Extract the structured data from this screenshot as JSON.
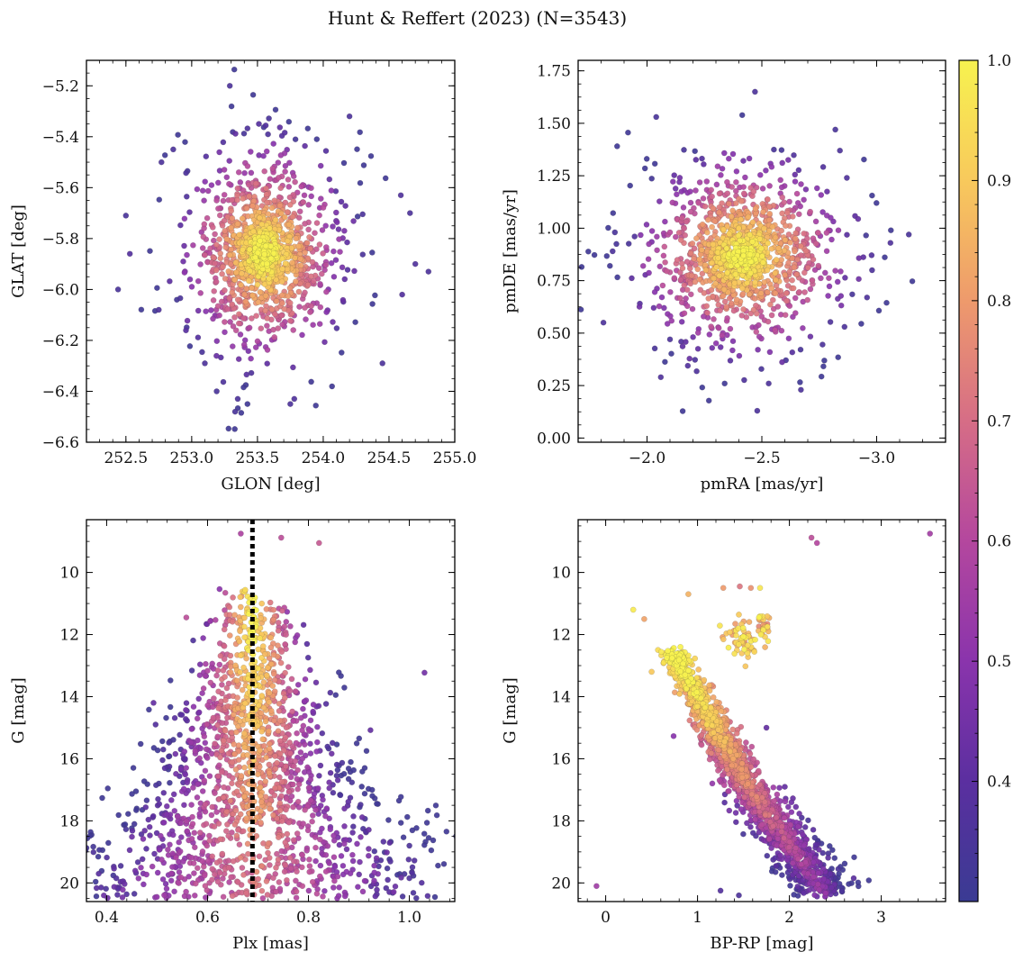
{
  "figure": {
    "title": "Hunt & Reffert (2023) (N=3543)",
    "n_members": 3543
  },
  "colorbar": {
    "colormap": "plasma",
    "range": [
      0.3,
      1.0
    ],
    "ticks": [
      0.4,
      0.5,
      0.6,
      0.7,
      0.8,
      0.9,
      1.0
    ],
    "tick_labels": [
      "0.4",
      "0.5",
      "0.6",
      "0.7",
      "0.8",
      "0.9",
      "1.0"
    ],
    "colors": [
      "#3a3b93",
      "#5b2fa0",
      "#8a34ac",
      "#b4479e",
      "#d66d86",
      "#ee9a6c",
      "#f8c95c",
      "#f7f24f"
    ]
  },
  "chart_data": [
    {
      "id": "glon-glat",
      "type": "scatter",
      "xlabel": "GLON [deg]",
      "ylabel": "GLAT [deg]",
      "xlim": [
        252.2,
        255.0
      ],
      "ylim": [
        -6.6,
        -5.1
      ],
      "y_inverted": false,
      "xticks": [
        252.5,
        253.0,
        253.5,
        254.0,
        254.5,
        255.0
      ],
      "xtick_labels": [
        "252.5",
        "253.0",
        "253.5",
        "254.0",
        "254.5",
        "255.0"
      ],
      "yticks": [
        -5.2,
        -5.4,
        -5.6,
        -5.8,
        -6.0,
        -6.2,
        -6.4,
        -6.6
      ],
      "ytick_labels": [
        "−5.2",
        "−5.4",
        "−5.6",
        "−5.8",
        "−6.0",
        "−6.2",
        "−6.4",
        "−6.6"
      ],
      "cluster_center": [
        253.55,
        -5.86
      ],
      "cluster_spread": [
        0.3,
        0.2
      ],
      "points": [
        {
          "x": 252.44,
          "y": -6.0,
          "p": 0.35
        },
        {
          "x": 252.5,
          "y": -5.71,
          "p": 0.35
        },
        {
          "x": 252.53,
          "y": -5.86,
          "p": 0.38
        },
        {
          "x": 252.77,
          "y": -5.5,
          "p": 0.36
        },
        {
          "x": 252.86,
          "y": -5.45,
          "p": 0.36
        },
        {
          "x": 253.1,
          "y": -6.29,
          "p": 0.36
        },
        {
          "x": 253.19,
          "y": -6.4,
          "p": 0.35
        },
        {
          "x": 253.29,
          "y": -5.2,
          "p": 0.36
        },
        {
          "x": 253.33,
          "y": -6.48,
          "p": 0.35
        },
        {
          "x": 253.35,
          "y": -6.43,
          "p": 0.36
        },
        {
          "x": 253.75,
          "y": -6.45,
          "p": 0.36
        },
        {
          "x": 253.78,
          "y": -6.43,
          "p": 0.37
        },
        {
          "x": 254.2,
          "y": -5.32,
          "p": 0.36
        },
        {
          "x": 254.45,
          "y": -6.29,
          "p": 0.36
        },
        {
          "x": 254.59,
          "y": -5.63,
          "p": 0.37
        },
        {
          "x": 254.66,
          "y": -5.7,
          "p": 0.36
        },
        {
          "x": 254.8,
          "y": -5.93,
          "p": 0.36
        },
        {
          "x": 254.7,
          "y": -5.9,
          "p": 0.37
        },
        {
          "x": 254.6,
          "y": -6.02,
          "p": 0.38
        },
        {
          "x": 252.75,
          "y": -6.08,
          "p": 0.37
        }
      ]
    },
    {
      "id": "pmra-pmde",
      "type": "scatter",
      "xlabel": "pmRA [mas/yr]",
      "ylabel": "pmDE [mas/yr]",
      "xlim": [
        -3.3,
        -1.7
      ],
      "ylim": [
        -0.02,
        1.8
      ],
      "y_inverted": false,
      "x_inverted": true,
      "xticks": [
        -3.0,
        -2.5,
        -2.0
      ],
      "xtick_labels": [
        "−3.0",
        "−2.5",
        "−2.0"
      ],
      "yticks": [
        0.0,
        0.25,
        0.5,
        0.75,
        1.0,
        1.25,
        1.5,
        1.75
      ],
      "ytick_labels": [
        "0.00",
        "0.25",
        "0.50",
        "0.75",
        "1.00",
        "1.25",
        "1.50",
        "1.75"
      ],
      "cluster_center": [
        -2.42,
        0.87
      ],
      "cluster_spread": [
        0.22,
        0.22
      ],
      "points": [
        {
          "x": -3.14,
          "y": 0.97,
          "p": 0.35
        },
        {
          "x": -3.06,
          "y": 0.93,
          "p": 0.37
        },
        {
          "x": -2.98,
          "y": 0.8,
          "p": 0.36
        },
        {
          "x": -2.82,
          "y": 1.47,
          "p": 0.35
        },
        {
          "x": -2.47,
          "y": 1.65,
          "p": 0.36
        },
        {
          "x": -2.48,
          "y": 0.13,
          "p": 0.36
        },
        {
          "x": -2.53,
          "y": 0.26,
          "p": 0.36
        },
        {
          "x": -2.67,
          "y": 0.23,
          "p": 0.36
        },
        {
          "x": -2.04,
          "y": 1.53,
          "p": 0.35
        },
        {
          "x": -1.81,
          "y": 0.55,
          "p": 0.36
        },
        {
          "x": -1.86,
          "y": 0.98,
          "p": 0.35
        },
        {
          "x": -1.85,
          "y": 0.89,
          "p": 0.36
        },
        {
          "x": -2.06,
          "y": 0.29,
          "p": 0.37
        },
        {
          "x": -2.84,
          "y": 1.37,
          "p": 0.36
        },
        {
          "x": -2.87,
          "y": 1.24,
          "p": 0.37
        },
        {
          "x": -2.86,
          "y": 0.53,
          "p": 0.36
        },
        {
          "x": -2.1,
          "y": 0.47,
          "p": 0.36
        }
      ]
    },
    {
      "id": "plx-g",
      "type": "scatter",
      "xlabel": "Plx [mas]",
      "ylabel": "G [mag]",
      "xlim": [
        0.36,
        1.09
      ],
      "ylim": [
        8.3,
        20.6
      ],
      "y_inverted": true,
      "xticks": [
        0.4,
        0.6,
        0.8,
        1.0
      ],
      "xtick_labels": [
        "0.4",
        "0.6",
        "0.8",
        "1.0"
      ],
      "yticks": [
        10,
        12,
        14,
        16,
        18,
        20
      ],
      "ytick_labels": [
        "10",
        "12",
        "14",
        "16",
        "18",
        "20"
      ],
      "reference_line": {
        "axis": "x",
        "value": 0.689,
        "style": "dotted",
        "color": "#000000"
      },
      "points": [
        {
          "x": 0.821,
          "y": 9.05,
          "p": 0.65
        },
        {
          "x": 0.746,
          "y": 8.88,
          "p": 0.62
        },
        {
          "x": 0.666,
          "y": 8.75,
          "p": 0.58
        },
        {
          "x": 0.674,
          "y": 10.6,
          "p": 0.6
        },
        {
          "x": 0.558,
          "y": 11.45,
          "p": 0.62
        },
        {
          "x": 1.03,
          "y": 13.23,
          "p": 0.45
        },
        {
          "x": 0.923,
          "y": 15.08,
          "p": 0.42
        },
        {
          "x": 0.493,
          "y": 14.2,
          "p": 0.42
        },
        {
          "x": 0.497,
          "y": 14.9,
          "p": 0.38
        },
        {
          "x": 0.432,
          "y": 19.95,
          "p": 0.4
        },
        {
          "x": 0.428,
          "y": 19.45,
          "p": 0.36
        },
        {
          "x": 1.01,
          "y": 19.28,
          "p": 0.38
        },
        {
          "x": 1.0,
          "y": 19.85,
          "p": 0.37
        },
        {
          "x": 1.0,
          "y": 18.8,
          "p": 0.36
        },
        {
          "x": 0.455,
          "y": 20.35,
          "p": 0.36
        }
      ]
    },
    {
      "id": "bprp-g",
      "type": "scatter",
      "xlabel": "BP-RP [mag]",
      "ylabel": "G [mag]",
      "xlim": [
        -0.3,
        3.7
      ],
      "ylim": [
        8.3,
        20.6
      ],
      "y_inverted": true,
      "xticks": [
        0,
        1,
        2,
        3
      ],
      "xtick_labels": [
        "0",
        "1",
        "2",
        "3"
      ],
      "yticks": [
        10,
        12,
        14,
        16,
        18,
        20
      ],
      "ytick_labels": [
        "10",
        "12",
        "14",
        "16",
        "18",
        "20"
      ],
      "points": [
        {
          "x": 3.53,
          "y": 8.75,
          "p": 0.56
        },
        {
          "x": 2.24,
          "y": 8.88,
          "p": 0.62
        },
        {
          "x": 2.3,
          "y": 9.05,
          "p": 0.6
        },
        {
          "x": 1.28,
          "y": 10.5,
          "p": 0.8
        },
        {
          "x": 1.46,
          "y": 10.45,
          "p": 0.72
        },
        {
          "x": 1.58,
          "y": 10.5,
          "p": 0.78
        },
        {
          "x": 1.68,
          "y": 10.5,
          "p": 0.97
        },
        {
          "x": 0.9,
          "y": 10.7,
          "p": 0.85
        },
        {
          "x": 0.3,
          "y": 11.2,
          "p": 0.98
        },
        {
          "x": 0.42,
          "y": 11.5,
          "p": 0.82
        },
        {
          "x": 0.5,
          "y": 13.2,
          "p": 0.9
        },
        {
          "x": -0.1,
          "y": 20.1,
          "p": 0.55
        },
        {
          "x": 1.75,
          "y": 15.0,
          "p": 0.42
        },
        {
          "x": 1.25,
          "y": 20.25,
          "p": 0.38
        },
        {
          "x": 1.45,
          "y": 20.4,
          "p": 0.36
        },
        {
          "x": 2.7,
          "y": 19.85,
          "p": 0.4
        }
      ]
    }
  ]
}
